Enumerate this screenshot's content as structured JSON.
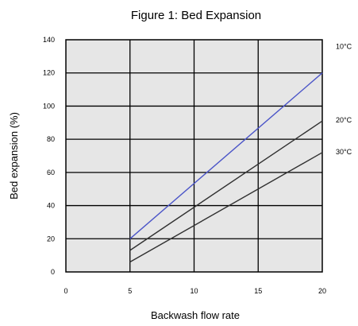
{
  "chart_data": {
    "type": "line",
    "title": "Figure 1: Bed Expansion",
    "xlabel": "Backwash flow rate",
    "ylabel": "Bed expansion (%)",
    "xlim": [
      0,
      20
    ],
    "ylim": [
      0,
      140
    ],
    "x_ticks": [
      0,
      5,
      10,
      15,
      20
    ],
    "y_ticks": [
      0,
      20,
      40,
      60,
      80,
      100,
      120,
      140
    ],
    "grid": true,
    "series": [
      {
        "name": "10°C",
        "color": "#4b55c8",
        "x": [
          5,
          20
        ],
        "y": [
          20,
          120
        ]
      },
      {
        "name": "20°C",
        "color": "#303030",
        "x": [
          5,
          20
        ],
        "y": [
          13,
          91
        ]
      },
      {
        "name": "30°C",
        "color": "#303030",
        "x": [
          5,
          20
        ],
        "y": [
          6,
          72
        ]
      }
    ],
    "series_labels_position": "right of plot, at line ends"
  }
}
